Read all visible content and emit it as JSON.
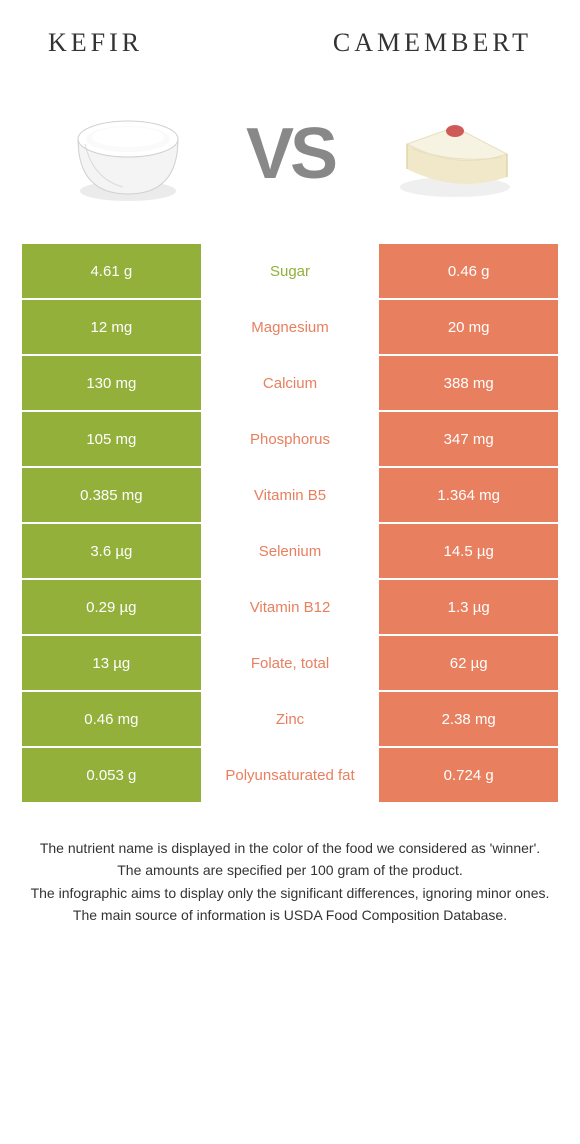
{
  "colors": {
    "left": "#92b03a",
    "right": "#e87f5f",
    "mid_bg": "#ffffff",
    "text_dark": "#333333"
  },
  "header": {
    "left_title": "Kefir",
    "right_title": "Camembert",
    "vs": "VS"
  },
  "rows": [
    {
      "left": "4.61 g",
      "label": "Sugar",
      "right": "0.46 g",
      "winner": "left"
    },
    {
      "left": "12 mg",
      "label": "Magnesium",
      "right": "20 mg",
      "winner": "right"
    },
    {
      "left": "130 mg",
      "label": "Calcium",
      "right": "388 mg",
      "winner": "right"
    },
    {
      "left": "105 mg",
      "label": "Phosphorus",
      "right": "347 mg",
      "winner": "right"
    },
    {
      "left": "0.385 mg",
      "label": "Vitamin B5",
      "right": "1.364 mg",
      "winner": "right"
    },
    {
      "left": "3.6 µg",
      "label": "Selenium",
      "right": "14.5 µg",
      "winner": "right"
    },
    {
      "left": "0.29 µg",
      "label": "Vitamin B12",
      "right": "1.3 µg",
      "winner": "right"
    },
    {
      "left": "13 µg",
      "label": "Folate, total",
      "right": "62 µg",
      "winner": "right"
    },
    {
      "left": "0.46 mg",
      "label": "Zinc",
      "right": "2.38 mg",
      "winner": "right"
    },
    {
      "left": "0.053 g",
      "label": "Polyunsaturated fat",
      "right": "0.724 g",
      "winner": "right"
    }
  ],
  "footer": {
    "line1": "The nutrient name is displayed in the color of the food we considered as 'winner'.",
    "line2": "The amounts are specified per 100 gram of the product.",
    "line3": "The infographic aims to display only the significant differences, ignoring minor ones.",
    "line4": "The main source of information is USDA Food Composition Database."
  }
}
